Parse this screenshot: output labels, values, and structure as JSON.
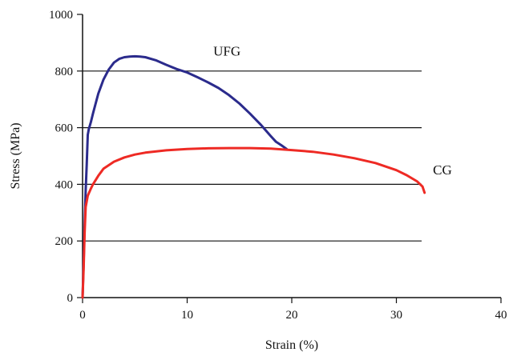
{
  "chart_data": {
    "type": "line",
    "title": "",
    "xlabel": "Strain (%)",
    "ylabel": "Stress (MPa)",
    "xlim": [
      0,
      40
    ],
    "ylim": [
      0,
      1000
    ],
    "xticks": [
      0,
      10,
      20,
      30,
      40
    ],
    "yticks": [
      0,
      200,
      400,
      600,
      800,
      1000
    ],
    "grid": "horizontal",
    "legend": "none (direct labels)",
    "series": [
      {
        "name": "UFG",
        "color": "#2b2b8c",
        "x": [
          0,
          0.1,
          0.2,
          0.3,
          0.4,
          0.5,
          0.6,
          0.8,
          1.0,
          1.5,
          2.0,
          2.5,
          3.0,
          3.5,
          4.0,
          4.5,
          5.0,
          5.5,
          6.0,
          7.0,
          8.0,
          9.0,
          10.0,
          11.0,
          12.0,
          13.0,
          14.0,
          15.0,
          16.0,
          17.0,
          18.0,
          18.5,
          19.0,
          19.5
        ],
        "y": [
          0,
          120,
          260,
          380,
          470,
          575,
          595,
          620,
          650,
          720,
          770,
          805,
          830,
          843,
          849,
          851,
          852,
          851,
          849,
          838,
          822,
          807,
          795,
          778,
          760,
          740,
          715,
          685,
          650,
          612,
          570,
          550,
          538,
          525
        ]
      },
      {
        "name": "CG",
        "color": "#ee2a24",
        "x": [
          0,
          0.1,
          0.2,
          0.3,
          0.5,
          0.8,
          1.0,
          1.5,
          2.0,
          3.0,
          4.0,
          5.0,
          6.0,
          8.0,
          10.0,
          12.0,
          14.0,
          16.0,
          18.0,
          20.0,
          22.0,
          24.0,
          26.0,
          28.0,
          30.0,
          31.0,
          32.0,
          32.5,
          32.7
        ],
        "y": [
          0,
          100,
          230,
          320,
          360,
          385,
          400,
          430,
          455,
          480,
          495,
          505,
          512,
          520,
          525,
          527,
          528,
          528,
          526,
          521,
          515,
          505,
          492,
          475,
          450,
          432,
          410,
          392,
          370
        ]
      }
    ],
    "annotations": [
      {
        "text": "UFG",
        "x": 12.5,
        "y": 855
      },
      {
        "text": "CG",
        "x": 33.5,
        "y": 435
      }
    ]
  }
}
